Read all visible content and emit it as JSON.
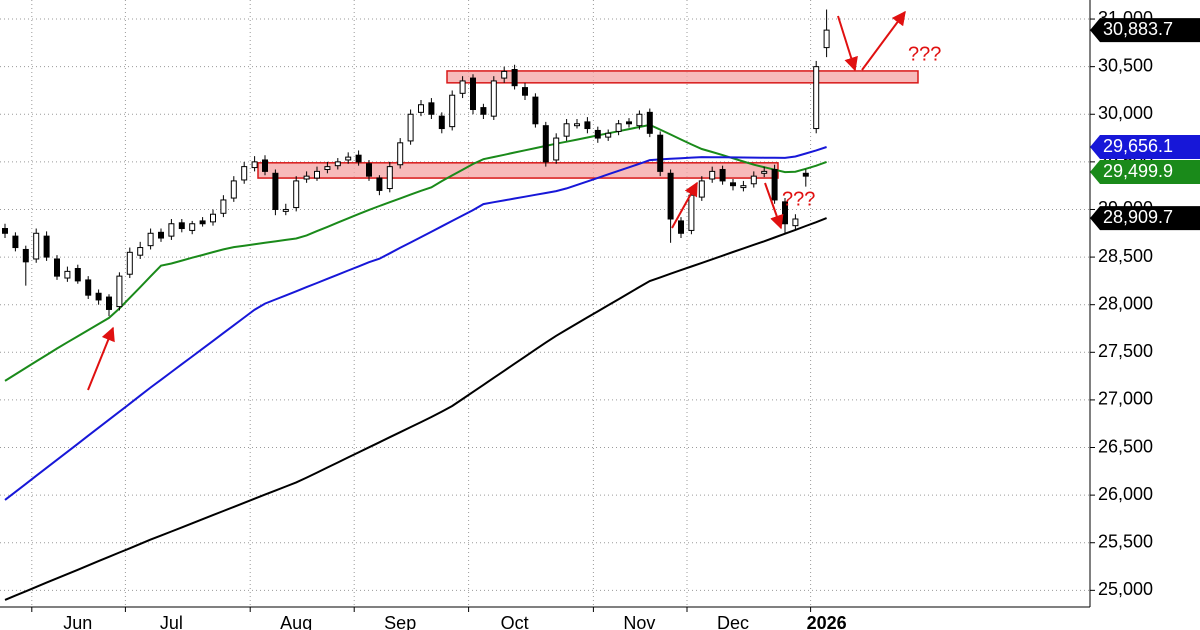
{
  "chart_data": {
    "type": "candlestick",
    "categories": [
      null,
      null,
      null,
      null,
      null,
      null,
      null,
      "Jun",
      null,
      null,
      null,
      null,
      null,
      null,
      null,
      null,
      "Jul",
      null,
      null,
      null,
      null,
      null,
      null,
      null,
      null,
      null,
      null,
      null,
      "Aug",
      null,
      null,
      null,
      null,
      null,
      null,
      null,
      null,
      null,
      "Sep",
      null,
      null,
      null,
      null,
      null,
      null,
      null,
      null,
      null,
      null,
      "Oct",
      null,
      null,
      null,
      null,
      null,
      null,
      null,
      null,
      null,
      null,
      null,
      "Nov",
      null,
      null,
      null,
      null,
      null,
      null,
      null,
      null,
      "Dec",
      null,
      null,
      null,
      null,
      null,
      null,
      null,
      null,
      "2026"
    ],
    "open": [
      28800,
      28720,
      28580,
      28480,
      28720,
      28480,
      28280,
      28380,
      28260,
      28120,
      28080,
      27980,
      28320,
      28520,
      28620,
      28760,
      28720,
      28860,
      28780,
      28880,
      28870,
      28960,
      29120,
      29310,
      29440,
      29520,
      29380,
      28980,
      29020,
      29320,
      29330,
      29420,
      29460,
      29520,
      29570,
      29480,
      29330,
      29220,
      29470,
      29720,
      30020,
      30120,
      29980,
      29870,
      30220,
      30380,
      30070,
      29980,
      30380,
      30470,
      30280,
      30180,
      29880,
      29520,
      29770,
      29880,
      29920,
      29830,
      29760,
      29820,
      29920,
      29880,
      30020,
      29780,
      29380,
      28880,
      28780,
      29130,
      29320,
      29420,
      29280,
      29230,
      29270,
      29380,
      29420,
      29080,
      28830,
      29380,
      29850,
      30700
    ],
    "high": [
      28850,
      28760,
      28620,
      28800,
      28770,
      28520,
      28400,
      28420,
      28300,
      28160,
      28110,
      28340,
      28600,
      28660,
      28800,
      28800,
      28900,
      28900,
      28880,
      28920,
      29000,
      29150,
      29350,
      29500,
      29560,
      29570,
      29420,
      29060,
      29350,
      29400,
      29450,
      29500,
      29540,
      29600,
      29620,
      29520,
      29360,
      29500,
      29750,
      30050,
      30150,
      30170,
      30020,
      30250,
      30400,
      30420,
      30110,
      30400,
      30500,
      30520,
      30330,
      30220,
      29920,
      29800,
      29950,
      29950,
      29970,
      29870,
      29840,
      29940,
      29960,
      30040,
      30060,
      29820,
      29420,
      28920,
      29200,
      29350,
      29450,
      29460,
      29320,
      29300,
      29400,
      29450,
      29470,
      29120,
      28950,
      29420,
      30560,
      31100
    ],
    "low": [
      28700,
      28560,
      28200,
      28440,
      28460,
      28260,
      28240,
      28220,
      28060,
      28000,
      27880,
      27940,
      28280,
      28480,
      28580,
      28660,
      28680,
      28760,
      28740,
      28820,
      28830,
      28920,
      29080,
      29270,
      29400,
      29360,
      28940,
      28940,
      28980,
      29280,
      29300,
      29380,
      29420,
      29480,
      29460,
      29300,
      29150,
      29180,
      29430,
      29680,
      29980,
      29950,
      29800,
      29830,
      30170,
      30000,
      29950,
      29940,
      30330,
      30260,
      30150,
      29860,
      29450,
      29480,
      29720,
      29850,
      29800,
      29700,
      29720,
      29780,
      29860,
      29840,
      29760,
      29350,
      28650,
      28700,
      28740,
      29090,
      29280,
      29260,
      29200,
      29190,
      29230,
      29340,
      29060,
      28750,
      28780,
      29240,
      29800,
      30600
    ],
    "close": [
      28750,
      28600,
      28450,
      28750,
      28500,
      28300,
      28350,
      28250,
      28100,
      28050,
      27950,
      28300,
      28550,
      28600,
      28750,
      28700,
      28850,
      28800,
      28850,
      28850,
      28950,
      29100,
      29300,
      29450,
      29500,
      29400,
      29000,
      29000,
      29300,
      29350,
      29400,
      29450,
      29500,
      29550,
      29500,
      29350,
      29200,
      29450,
      29700,
      30000,
      30100,
      30000,
      29850,
      30200,
      30350,
      30050,
      30000,
      30350,
      30450,
      30300,
      30200,
      29900,
      29500,
      29750,
      29900,
      29900,
      29850,
      29750,
      29800,
      29900,
      29900,
      30000,
      29800,
      29400,
      28900,
      28750,
      29150,
      29300,
      29400,
      29300,
      29250,
      29250,
      29350,
      29400,
      29100,
      28850,
      28900,
      29350,
      30500,
      30883.7
    ],
    "series": [
      {
        "color": "#1a8a1a",
        "values": [
          27200,
          27268,
          27336,
          27404,
          27472,
          27540,
          27605,
          27669,
          27733,
          27797,
          27861,
          27960,
          28072,
          28184,
          28298,
          28410,
          28433,
          28463,
          28493,
          28522,
          28552,
          28581,
          28605,
          28620,
          28635,
          28650,
          28665,
          28680,
          28695,
          28728,
          28773,
          28817,
          28862,
          28907,
          28951,
          28996,
          29036,
          29076,
          29116,
          29156,
          29196,
          29233,
          29298,
          29358,
          29418,
          29478,
          29528,
          29551,
          29574,
          29598,
          29621,
          29645,
          29668,
          29691,
          29712,
          29734,
          29756,
          29778,
          29800,
          29822,
          29844,
          29866,
          29888,
          29839,
          29787,
          29735,
          29683,
          29635,
          29604,
          29571,
          29537,
          29504,
          29470,
          29444,
          29418,
          29392,
          29397,
          29427,
          29460,
          29499.9
        ]
      },
      {
        "color": "#1717d8",
        "values": [
          25950,
          26034,
          26118,
          26203,
          26287,
          26371,
          26455,
          26539,
          26624,
          26708,
          26792,
          26876,
          26960,
          27045,
          27130,
          27211,
          27293,
          27375,
          27456,
          27538,
          27620,
          27702,
          27784,
          27865,
          27947,
          28011,
          28054,
          28098,
          28141,
          28185,
          28228,
          28272,
          28315,
          28359,
          28402,
          28446,
          28483,
          28540,
          28597,
          28653,
          28710,
          28767,
          28823,
          28880,
          28937,
          28993,
          29056,
          29076,
          29095,
          29115,
          29134,
          29154,
          29173,
          29193,
          29221,
          29258,
          29295,
          29332,
          29369,
          29406,
          29443,
          29480,
          29519,
          29526,
          29532,
          29538,
          29545,
          29550,
          29549,
          29548,
          29547,
          29546,
          29545,
          29544,
          29543,
          29542,
          29556,
          29588,
          29620,
          29656.1
        ]
      },
      {
        "color": "#000000",
        "values": [
          24900,
          24945,
          24990,
          25036,
          25081,
          25126,
          25171,
          25216,
          25262,
          25307,
          25352,
          25397,
          25442,
          25488,
          25533,
          25575,
          25618,
          25661,
          25704,
          25747,
          25790,
          25833,
          25876,
          25919,
          25962,
          26005,
          26048,
          26091,
          26134,
          26184,
          26237,
          26290,
          26343,
          26396,
          26449,
          26502,
          26555,
          26608,
          26661,
          26714,
          26767,
          26820,
          26877,
          26936,
          27010,
          27084,
          27158,
          27232,
          27306,
          27380,
          27454,
          27528,
          27602,
          27673,
          27738,
          27802,
          27866,
          27930,
          27994,
          28058,
          28122,
          28186,
          28249,
          28287,
          28325,
          28363,
          28401,
          28439,
          28477,
          28515,
          28553,
          28591,
          28629,
          28666,
          28706,
          28746,
          28786,
          28826,
          28866,
          28909.7
        ]
      }
    ],
    "ylim": [
      24825,
      31200
    ],
    "yticks": [
      {
        "value": 25000,
        "label": "25,000"
      },
      {
        "value": 25500,
        "label": "25,500"
      },
      {
        "value": 26000,
        "label": "26,000"
      },
      {
        "value": 26500,
        "label": "26,500"
      },
      {
        "value": 27000,
        "label": "27,000"
      },
      {
        "value": 27500,
        "label": "27,500"
      },
      {
        "value": 28000,
        "label": "28,000"
      },
      {
        "value": 28500,
        "label": "28,500"
      },
      {
        "value": 29000,
        "label": "29,000"
      },
      {
        "value": 29500,
        "label": "29,500"
      },
      {
        "value": 30000,
        "label": "30,000"
      },
      {
        "value": 30500,
        "label": "30,500"
      },
      {
        "value": 31000,
        "label": "31,000"
      }
    ],
    "grid": true,
    "up_color": "#ffffff",
    "down_color": "#000000",
    "price_tags": [
      {
        "value": 30883.7,
        "label": "30,883.7",
        "color": "#000000"
      },
      {
        "value": 29656.1,
        "label": "29,656.1",
        "color": "#1717d8"
      },
      {
        "value": 29499.9,
        "label": "29,499.9",
        "color": "#1a8a1a"
      },
      {
        "value": 28909.7,
        "label": "28,909.7",
        "color": "#000000"
      }
    ],
    "zones": [
      {
        "low": 30330,
        "high": 30455
      },
      {
        "low": 29330,
        "high": 29490
      }
    ],
    "annotations": [
      "???",
      "???"
    ]
  }
}
